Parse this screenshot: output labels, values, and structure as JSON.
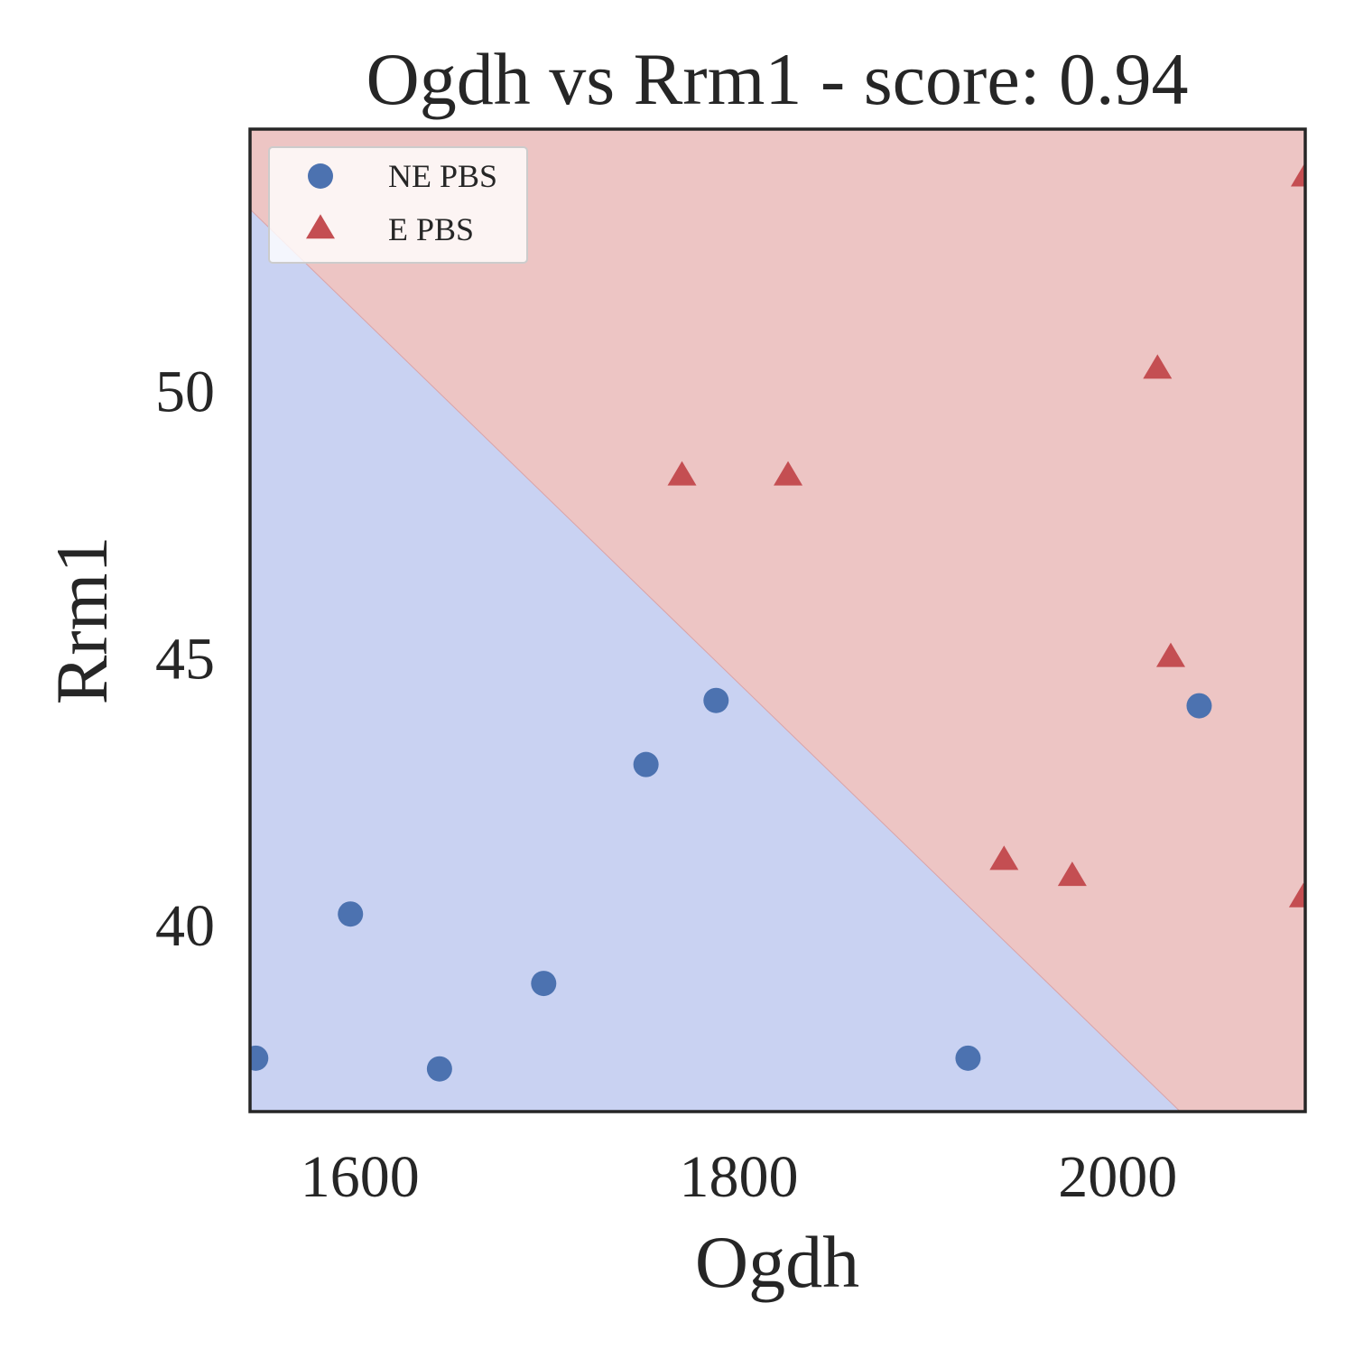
{
  "chart_data": {
    "type": "scatter",
    "title": "Ogdh vs Rrm1 - score: 0.94",
    "xlabel": "Ogdh",
    "ylabel": "Rrm1",
    "xlim": [
      1542,
      2099
    ],
    "ylim": [
      36.5,
      54.9
    ],
    "x_ticks": [
      {
        "value": 1600,
        "label": "1600"
      },
      {
        "value": 1800,
        "label": "1800"
      },
      {
        "value": 2000,
        "label": "2000"
      }
    ],
    "y_ticks": [
      {
        "value": 40,
        "label": "40"
      },
      {
        "value": 45,
        "label": "45"
      },
      {
        "value": 50,
        "label": "50"
      }
    ],
    "grid": false,
    "legend_position": "upper-left",
    "decision_regions": {
      "boundary_line": [
        [
          1542,
          53.4
        ],
        [
          2033,
          36.5
        ]
      ],
      "below_region_color": "#c9d2f2",
      "above_region_color": "#edc5c4"
    },
    "series": [
      {
        "name": "NE PBS",
        "marker": "circle",
        "color": "#4c72b0",
        "points": [
          [
            1545,
            37.5
          ],
          [
            1595,
            40.2
          ],
          [
            1642,
            37.3
          ],
          [
            1697,
            38.9
          ],
          [
            1751,
            43.0
          ],
          [
            1788,
            44.2
          ],
          [
            1921,
            37.5
          ],
          [
            2043,
            44.1
          ]
        ]
      },
      {
        "name": "E PBS",
        "marker": "triangle",
        "color": "#c44e52",
        "points": [
          [
            1770,
            48.4
          ],
          [
            1826,
            48.4
          ],
          [
            1940,
            41.2
          ],
          [
            1976,
            40.9
          ],
          [
            2021,
            50.4
          ],
          [
            2028,
            45.0
          ],
          [
            2099,
            54.0
          ],
          [
            2098,
            40.5
          ]
        ]
      }
    ]
  }
}
